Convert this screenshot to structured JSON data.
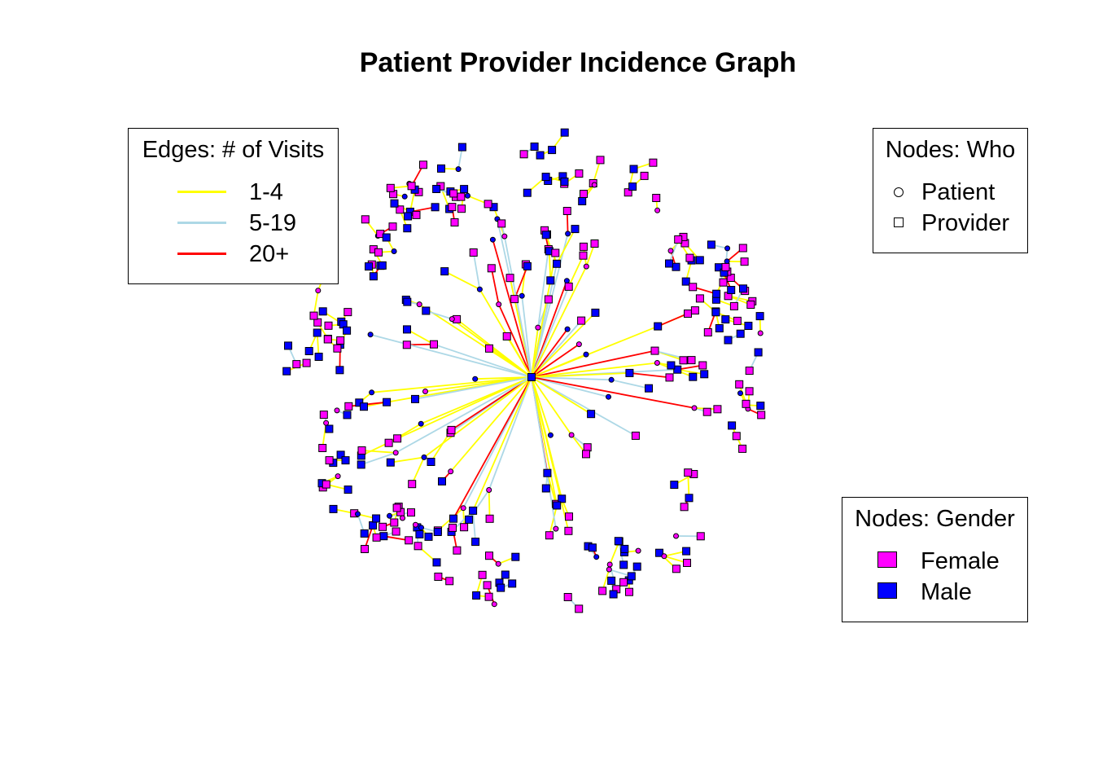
{
  "title": "Patient Provider Incidence Graph",
  "legends": {
    "edges": {
      "title": "Edges: # of Visits",
      "items": [
        {
          "label": "1-4",
          "color": "#ffff00"
        },
        {
          "label": "5-19",
          "color": "#add8e6"
        },
        {
          "label": "20+",
          "color": "#ff0000"
        }
      ]
    },
    "who": {
      "title": "Nodes: Who",
      "items": [
        {
          "label": "Patient",
          "shape": "circle"
        },
        {
          "label": "Provider",
          "shape": "square"
        }
      ]
    },
    "gender": {
      "title": "Nodes: Gender",
      "items": [
        {
          "label": "Female",
          "color": "#ff00ff"
        },
        {
          "label": "Male",
          "color": "#0000ff"
        }
      ]
    }
  },
  "colors": {
    "female": "#ff00ff",
    "male": "#0000ff",
    "node_border": "#000000"
  }
}
